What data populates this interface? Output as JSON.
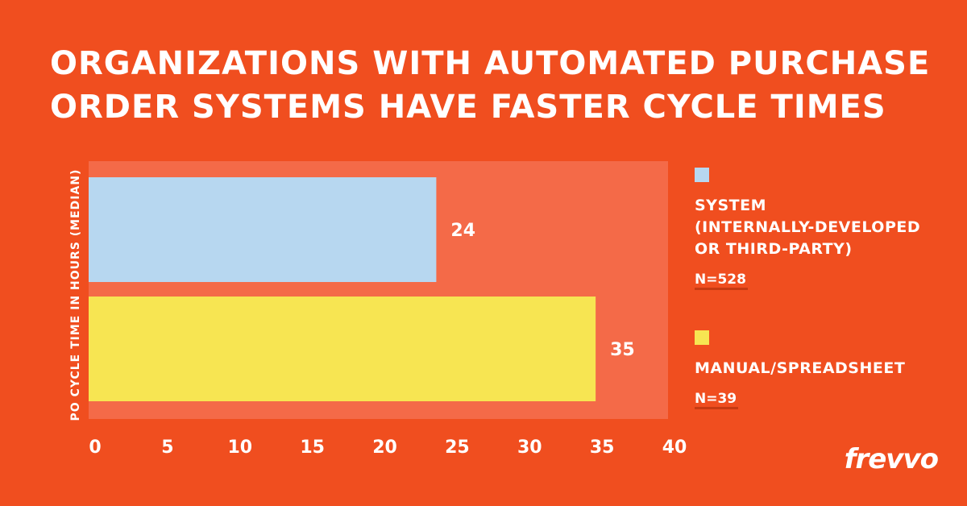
{
  "title_lines": [
    "ORGANIZATIONS WITH AUTOMATED PURCHASE",
    "ORDER SYSTEMS HAVE FASTER CYCLE TIMES"
  ],
  "legend": [
    {
      "lines": [
        "SYSTEM",
        "(INTERNALLY-DEVELOPED",
        "OR THIRD-PARTY)"
      ],
      "n": "N=528",
      "color": "#b7d7f0"
    },
    {
      "lines": [
        "MANUAL/SPREADSHEET"
      ],
      "n": "N=39",
      "color": "#f7e552"
    }
  ],
  "logo": "frevvo",
  "colors": {
    "background": "#f04e1f",
    "plot_area": "#f46a48"
  },
  "chart_data": {
    "type": "bar",
    "orientation": "horizontal",
    "ylabel": "PO CYCLE TIME IN HOURS (MEDIAN)",
    "xlim": [
      0,
      40
    ],
    "xticks": [
      0,
      5,
      10,
      15,
      20,
      25,
      30,
      35,
      40
    ],
    "series": [
      {
        "name": "SYSTEM (INTERNALLY-DEVELOPED OR THIRD-PARTY)",
        "value": 24,
        "label": "24",
        "color": "#b7d7f0"
      },
      {
        "name": "MANUAL/SPREADSHEET",
        "value": 35,
        "label": "35",
        "color": "#f7e552"
      }
    ],
    "legend_position": "right",
    "grid": false
  }
}
